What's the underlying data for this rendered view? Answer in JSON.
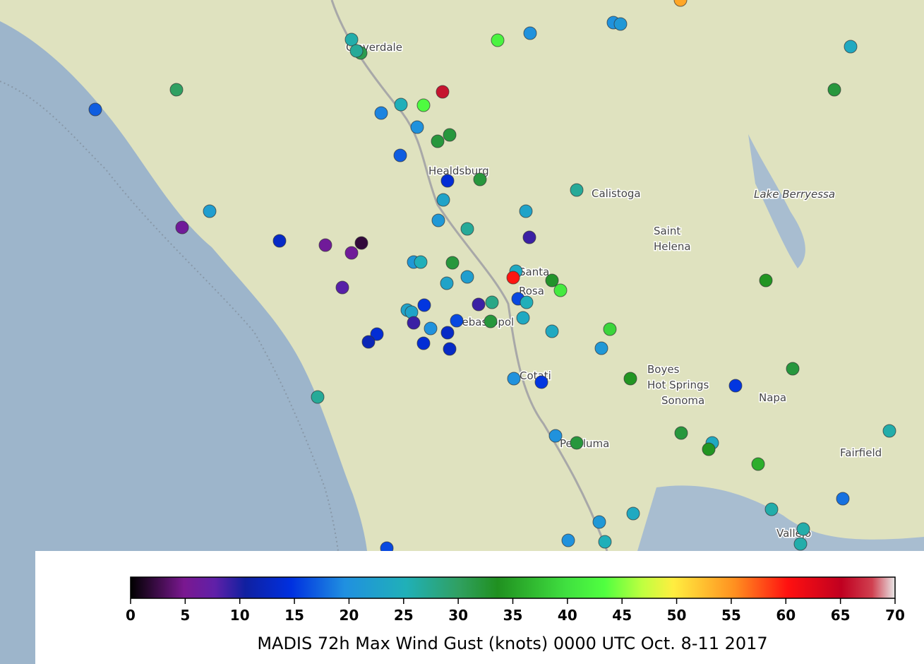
{
  "map": {
    "places": [
      "Cloverdale",
      "Healdsburg",
      "Calistoga",
      "Lake Berryessa",
      "Saint",
      "Helena",
      "Santa",
      "Rosa",
      "Sebastopol",
      "Cotati",
      "Boyes",
      "Hot Springs",
      "Sonoma",
      "Napa",
      "Petaluma",
      "Fairfield",
      "Vallejo"
    ],
    "stations": {
      "values": [
        54,
        26,
        31,
        27,
        42,
        20,
        20,
        21,
        24,
        32,
        30,
        17,
        66,
        25,
        43,
        19,
        20,
        32,
        32,
        17,
        14,
        32,
        27,
        23,
        23,
        22,
        21,
        27,
        6,
        9,
        13,
        6,
        6,
        2,
        21,
        25,
        32,
        24,
        60,
        33,
        41,
        34,
        8,
        23,
        22,
        16,
        25,
        28,
        9,
        15,
        23,
        23,
        9,
        20,
        16,
        32,
        24,
        13,
        14,
        12,
        14,
        13,
        24,
        39,
        21,
        32,
        27,
        20,
        15,
        34,
        15,
        20,
        32,
        32,
        24,
        34,
        36,
        26,
        18,
        24,
        21,
        26,
        26,
        26,
        20,
        25,
        16
      ]
    },
    "colorbar": {
      "label": "MADIS 72h Max Wind Gust (knots) 0000 UTC Oct. 8-11 2017",
      "lim": [
        0,
        70
      ],
      "ticks": [
        0,
        5,
        10,
        15,
        20,
        25,
        30,
        35,
        40,
        45,
        50,
        55,
        60,
        65,
        70
      ]
    }
  }
}
